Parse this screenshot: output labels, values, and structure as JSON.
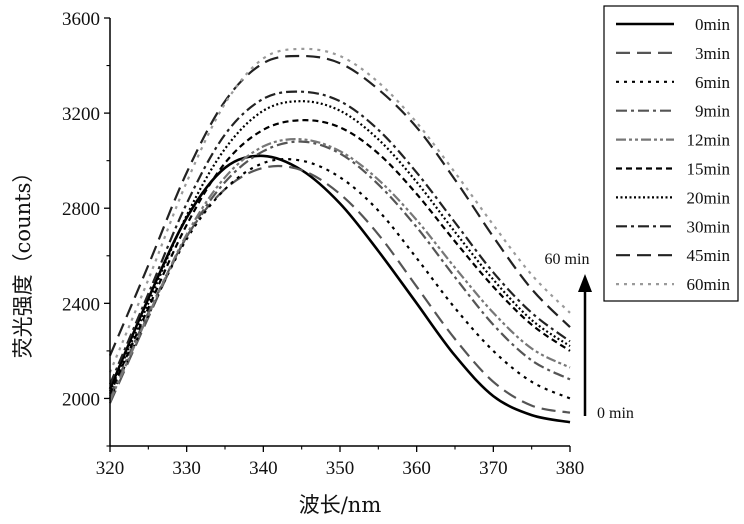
{
  "chart_data": {
    "type": "line",
    "xlabel": "波长/nm",
    "ylabel": "荧光强度（counts）",
    "xlim": [
      320,
      380
    ],
    "ylim": [
      1800,
      3600
    ],
    "xticks": [
      320,
      330,
      340,
      350,
      360,
      370,
      380
    ],
    "yticks": [
      2000,
      2400,
      2800,
      3200,
      3600
    ],
    "grid": false,
    "legend_position": "top-right, outside plot area",
    "annotations": {
      "top": "60 min",
      "bottom": "0 min"
    },
    "x": [
      320,
      325,
      330,
      335,
      340,
      345,
      350,
      355,
      360,
      365,
      370,
      375,
      380
    ],
    "series": [
      {
        "name": "0min",
        "style": "solid",
        "color": "#000000",
        "values": [
          2040,
          2420,
          2760,
          2970,
          3020,
          2960,
          2820,
          2620,
          2400,
          2180,
          2010,
          1930,
          1900
        ]
      },
      {
        "name": "3min",
        "style": "longdash",
        "color": "#555555",
        "values": [
          1980,
          2340,
          2680,
          2880,
          2970,
          2960,
          2860,
          2690,
          2470,
          2250,
          2070,
          1970,
          1940
        ]
      },
      {
        "name": "6min",
        "style": "dot",
        "color": "#000000",
        "values": [
          2000,
          2350,
          2670,
          2880,
          2990,
          3000,
          2930,
          2790,
          2590,
          2380,
          2200,
          2070,
          2000
        ]
      },
      {
        "name": "9min",
        "style": "dashdot",
        "color": "#555555",
        "values": [
          2010,
          2360,
          2680,
          2910,
          3040,
          3080,
          3030,
          2900,
          2720,
          2510,
          2310,
          2160,
          2080
        ]
      },
      {
        "name": "12min",
        "style": "dashdotdot",
        "color": "#777777",
        "values": [
          1990,
          2350,
          2690,
          2930,
          3060,
          3090,
          3040,
          2920,
          2750,
          2550,
          2360,
          2210,
          2130
        ]
      },
      {
        "name": "15min",
        "style": "shortdash",
        "color": "#000000",
        "values": [
          2020,
          2380,
          2730,
          2990,
          3130,
          3170,
          3140,
          3030,
          2860,
          2660,
          2470,
          2310,
          2200
        ]
      },
      {
        "name": "20min",
        "style": "finedot",
        "color": "#000000",
        "values": [
          2030,
          2400,
          2770,
          3050,
          3210,
          3250,
          3210,
          3090,
          2910,
          2700,
          2500,
          2330,
          2220
        ]
      },
      {
        "name": "30min",
        "style": "dashdot",
        "color": "#222222",
        "values": [
          2060,
          2440,
          2820,
          3110,
          3260,
          3290,
          3250,
          3130,
          2950,
          2740,
          2530,
          2360,
          2240
        ]
      },
      {
        "name": "45min",
        "style": "longdash",
        "color": "#222222",
        "values": [
          2180,
          2560,
          2950,
          3250,
          3410,
          3440,
          3410,
          3300,
          3140,
          2920,
          2680,
          2460,
          2300
        ]
      },
      {
        "name": "60min",
        "style": "dot",
        "color": "#9a9a9a",
        "values": [
          2110,
          2500,
          2910,
          3240,
          3430,
          3470,
          3440,
          3330,
          3160,
          2950,
          2730,
          2520,
          2360
        ]
      }
    ]
  }
}
